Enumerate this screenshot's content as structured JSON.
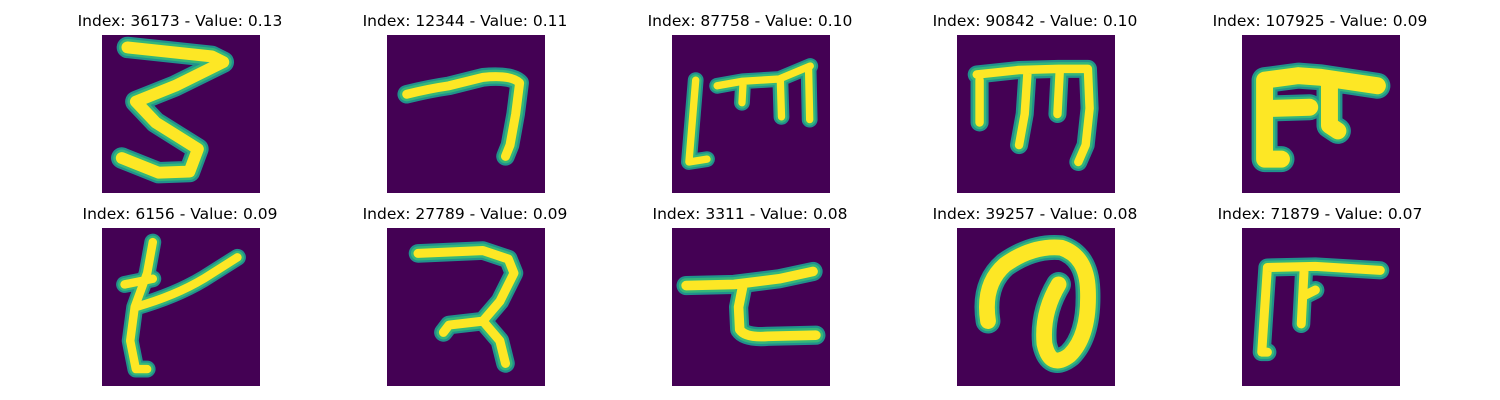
{
  "figure": {
    "background_color": "#ffffff",
    "image_background_color": "#440154",
    "colormap": "viridis",
    "stroke_colors": {
      "core": "#fde725",
      "edge_light": "#b5de2b",
      "edge_mid": "#35b779",
      "edge_dark": "#21918c"
    },
    "panels": [
      {
        "index": "36173",
        "value": "0.13",
        "title": "Index: 36173 - Value: 0.13",
        "glyph": "handwritten-3-shape"
      },
      {
        "index": "12344",
        "value": "0.11",
        "title": "Index: 12344 - Value: 0.11",
        "glyph": "hook-stroke"
      },
      {
        "index": "87758",
        "value": "0.10",
        "title": "Index: 87758 - Value: 0.10",
        "glyph": "m-shape-with-bar"
      },
      {
        "index": "90842",
        "value": "0.10",
        "title": "Index: 90842 - Value: 0.10",
        "glyph": "m-shape-with-bar"
      },
      {
        "index": "107925",
        "value": "0.09",
        "title": "Index: 107925 - Value: 0.09",
        "glyph": "pi-like-shape"
      },
      {
        "index": "6156",
        "value": "0.09",
        "title": "Index: 6156 - Value: 0.09",
        "glyph": "k-like-shape"
      },
      {
        "index": "27789",
        "value": "0.09",
        "title": "Index: 27789 - Value: 0.09",
        "glyph": "reversed-z-shape"
      },
      {
        "index": "3311",
        "value": "0.08",
        "title": "Index: 3311 - Value: 0.08",
        "glyph": "bar-with-hook-shape"
      },
      {
        "index": "39257",
        "value": "0.08",
        "title": "Index: 39257 - Value: 0.08",
        "glyph": "loop-shape"
      },
      {
        "index": "71879",
        "value": "0.07",
        "title": "Index: 71879 - Value: 0.07",
        "glyph": "pi-like-shape"
      }
    ]
  }
}
